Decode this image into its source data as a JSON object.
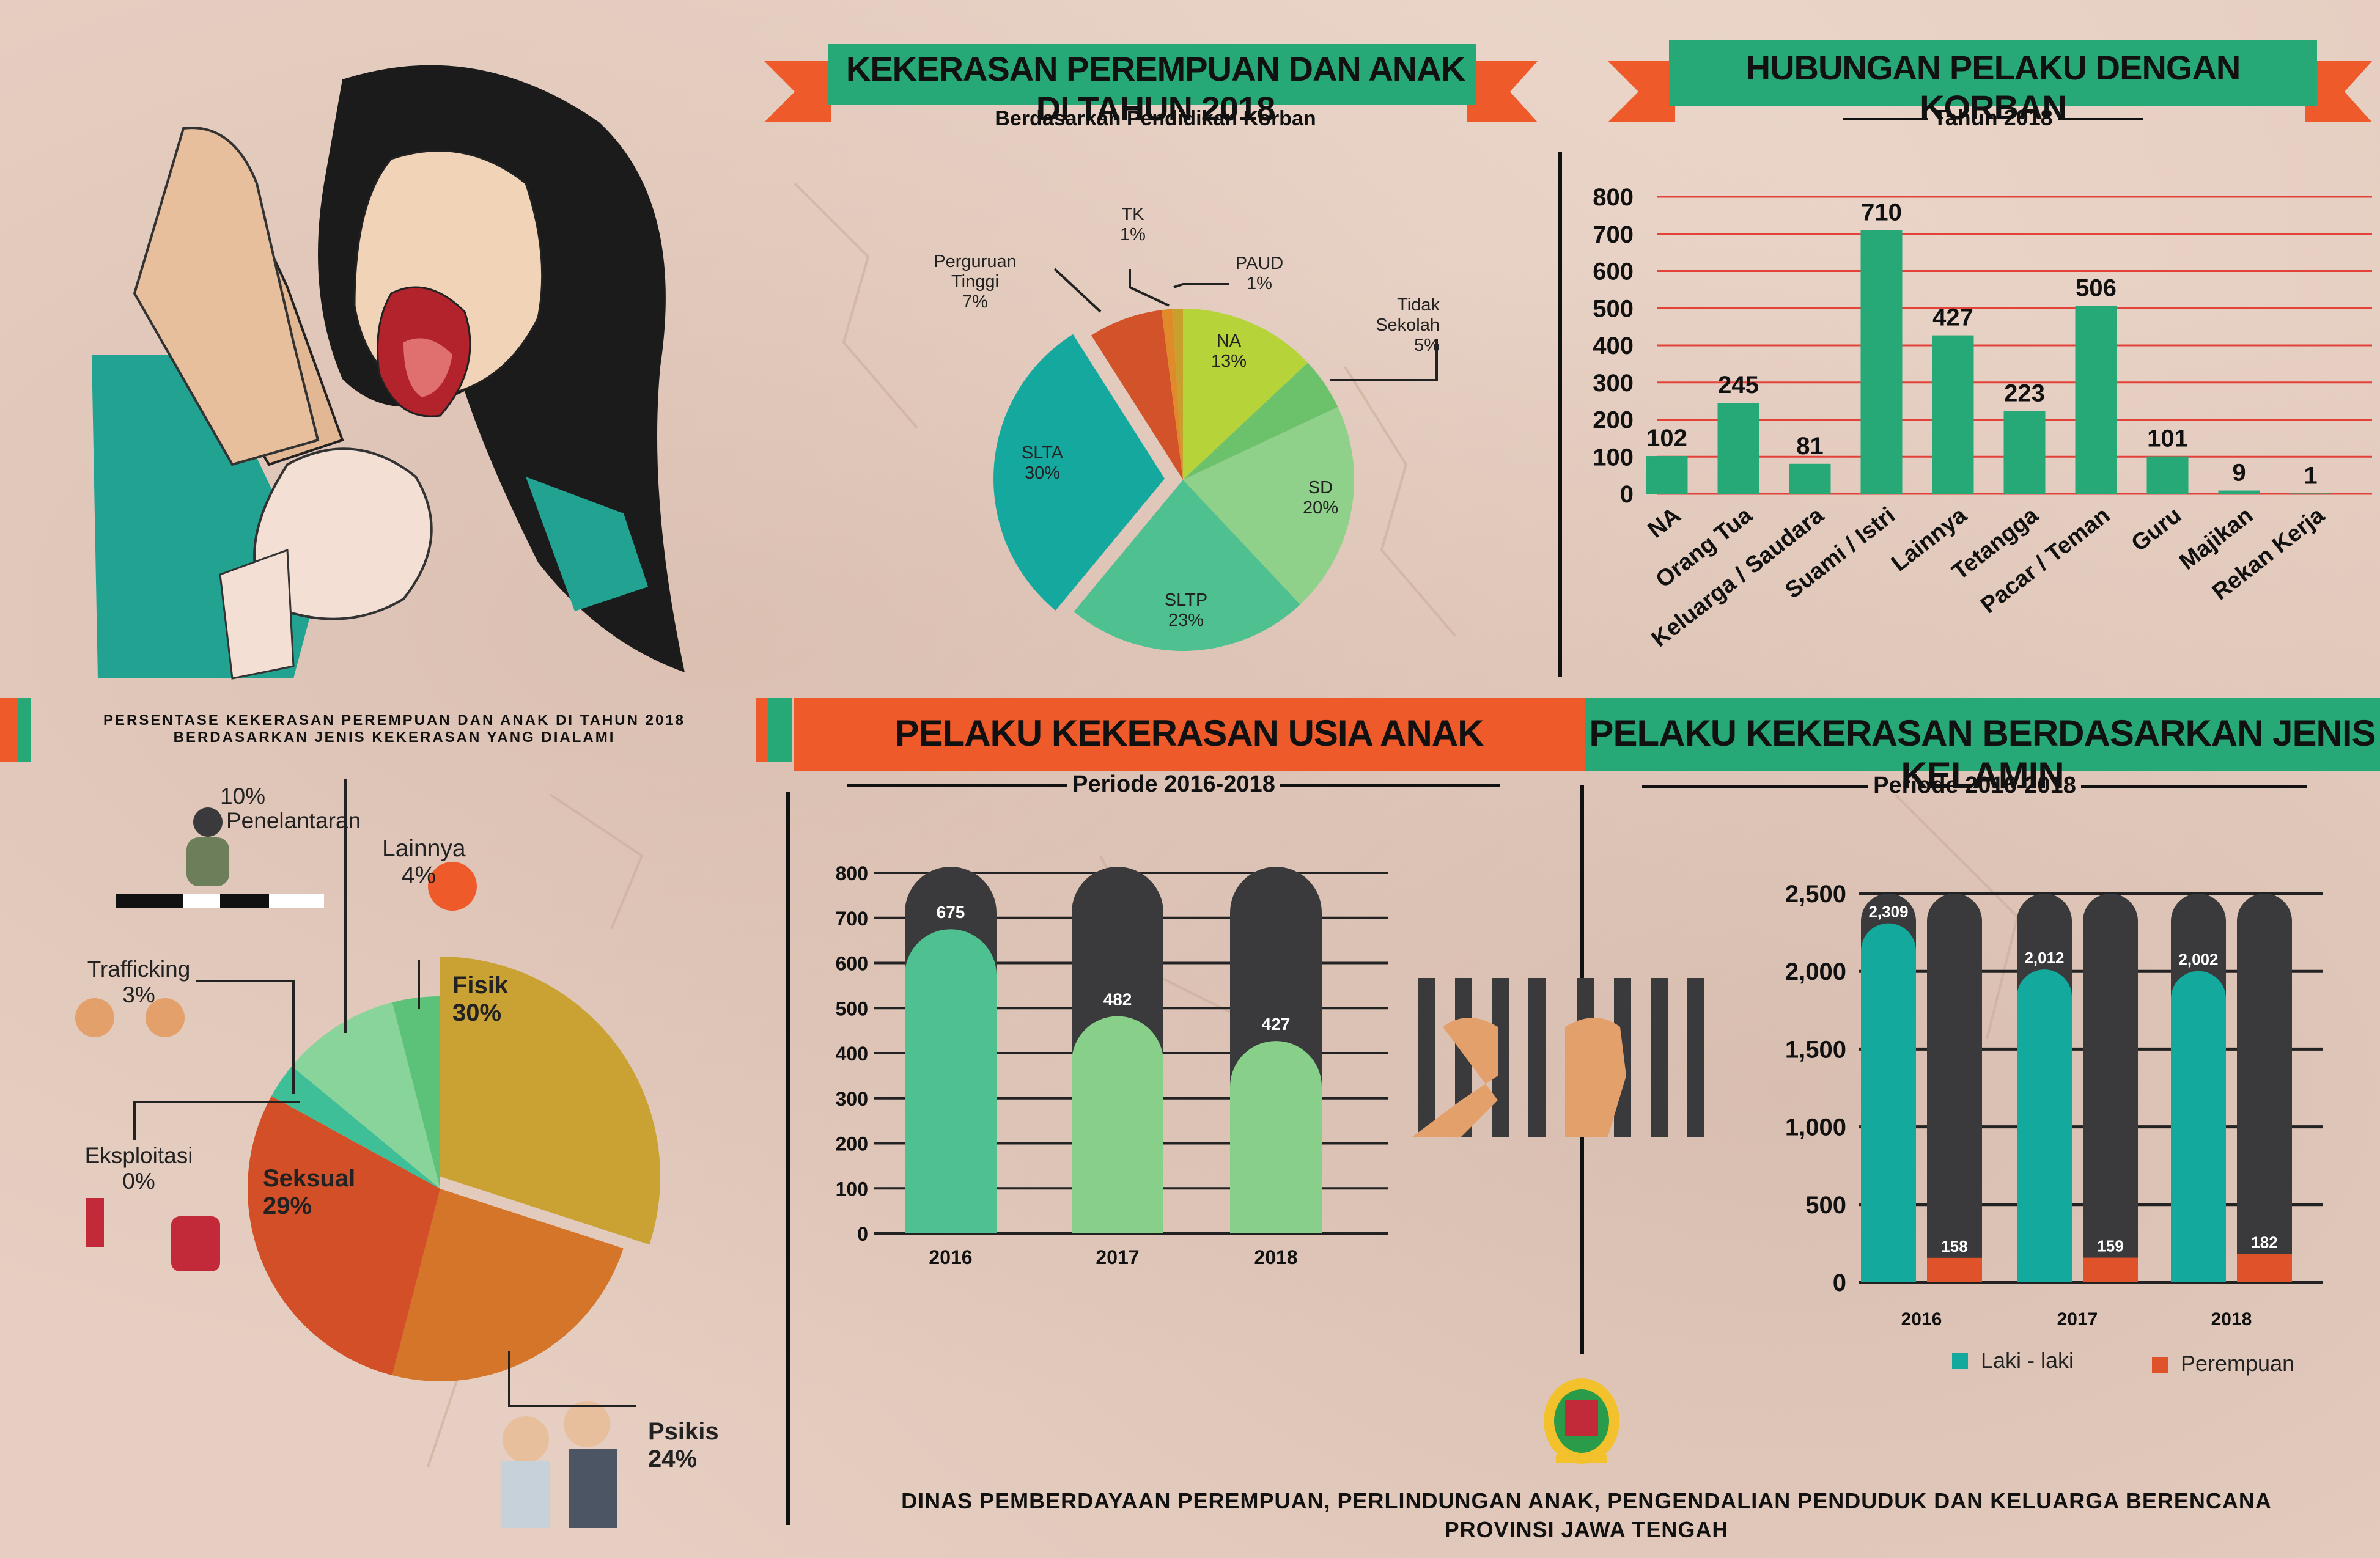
{
  "colors": {
    "green": "#27a877",
    "orange": "#ef5a2a",
    "dark": "#3a3a3c",
    "teal": "#13a99d",
    "red": "#e0522a",
    "gridline": "#e2423a"
  },
  "pie_edu": {
    "title": "KEKERASAN PEREMPUAN DAN ANAK DI TAHUN 2018",
    "subtitle": "Berdasarkan Pendidikan Korban",
    "labels": {
      "tk": "TK",
      "tk_pct": "1%",
      "paud": "PAUD",
      "paud_pct": "1%",
      "pt1": "Perguruan",
      "pt2": "Tinggi",
      "pt_pct": "7%",
      "ts": "Tidak Sekolah",
      "ts_pct": "5%",
      "na": "NA",
      "na_pct": "13%",
      "sd": "SD",
      "sd_pct": "20%",
      "sltp": "SLTP",
      "sltp_pct": "23%",
      "slta": "SLTA",
      "slta_pct": "30%"
    }
  },
  "bar_rel": {
    "title": "HUBUNGAN PELAKU DENGAN KORBAN",
    "subtitle": "Tahun 2018"
  },
  "pie_type": {
    "title_line1": "PERSENTASE KEKERASAN PEREMPUAN DAN ANAK DI TAHUN 2018",
    "title_line2": "BERDASARKAN JENIS KEKERASAN YANG DIALAMI",
    "labels": {
      "pen_pct": "10%",
      "pen": "Penelantaran",
      "lain": "Lainnya",
      "lain_pct": "4%",
      "traf": "Trafficking",
      "traf_pct": "3%",
      "eks": "Eksploitasi",
      "eks_pct": "0%",
      "fisik": "Fisik",
      "fisik_pct": "30%",
      "seks": "Seksual",
      "seks_pct": "29%",
      "psikis": "Psikis",
      "psikis_pct": "24%"
    }
  },
  "bar_age": {
    "title": "PELAKU KEKERASAN USIA ANAK",
    "subtitle": "Periode 2016-2018"
  },
  "bar_gender": {
    "title": "PELAKU KEKERASAN BERDASARKAN JENIS KELAMIN",
    "subtitle": "Periode 2016-2018",
    "legend_male": "Laki - laki",
    "legend_female": "Perempuan"
  },
  "footer": {
    "line1": "DINAS PEMBERDAYAAN PEREMPUAN, PERLINDUNGAN ANAK, PENGENDALIAN PENDUDUK DAN KELUARGA BERENCANA",
    "line2": "PROVINSI JAWA TENGAH"
  },
  "chart_data": [
    {
      "type": "pie",
      "title": "KEKERASAN PEREMPUAN DAN ANAK DI TAHUN 2018",
      "subtitle": "Berdasarkan Pendidikan Korban",
      "categories": [
        "NA",
        "Tidak Sekolah",
        "SD",
        "SLTP",
        "SLTA",
        "Perguruan Tinggi",
        "TK",
        "PAUD"
      ],
      "values": [
        13,
        5,
        20,
        23,
        30,
        7,
        1,
        1
      ],
      "colors": [
        "#b6d43a",
        "#6cc26a",
        "#8fd08a",
        "#4fc08f",
        "#15a89e",
        "#d2522a",
        "#e08a2c",
        "#c7a12c"
      ]
    },
    {
      "type": "bar",
      "title": "HUBUNGAN PELAKU DENGAN KORBAN",
      "subtitle": "Tahun 2018",
      "categories": [
        "NA",
        "Orang Tua",
        "Keluarga / Saudara",
        "Suami / Istri",
        "Lainnya",
        "Tetangga",
        "Pacar / Teman",
        "Guru",
        "Majikan",
        "Rekan Kerja"
      ],
      "values": [
        102,
        245,
        81,
        710,
        427,
        223,
        506,
        101,
        9,
        1
      ],
      "yticks": [
        0,
        100,
        200,
        300,
        400,
        500,
        600,
        700,
        800
      ],
      "ylim": [
        0,
        800
      ]
    },
    {
      "type": "pie",
      "title": "PERSENTASE KEKERASAN PEREMPUAN DAN ANAK DI TAHUN 2018 BERDASARKAN JENIS KEKERASAN YANG DIALAMI",
      "categories": [
        "Fisik",
        "Psikis",
        "Seksual",
        "Eksploitasi",
        "Trafficking",
        "Penelantaran",
        "Lainnya"
      ],
      "values": [
        30,
        24,
        29,
        0,
        3,
        10,
        4
      ],
      "colors": [
        "#c9a233",
        "#d4752a",
        "#d24f28",
        "#27a877",
        "#3fbf98",
        "#88d49a",
        "#5cc279"
      ]
    },
    {
      "type": "bar",
      "title": "PELAKU KEKERASAN USIA ANAK",
      "subtitle": "Periode 2016-2018",
      "categories": [
        "2016",
        "2017",
        "2018"
      ],
      "values": [
        675,
        482,
        427
      ],
      "yticks": [
        0,
        100,
        200,
        300,
        400,
        500,
        600,
        700,
        800
      ],
      "ylim": [
        0,
        800
      ]
    },
    {
      "type": "bar",
      "title": "PELAKU KEKERASAN BERDASARKAN JENIS KELAMIN",
      "subtitle": "Periode 2016-2018",
      "categories": [
        "2016",
        "2017",
        "2018"
      ],
      "series": [
        {
          "name": "Laki - laki",
          "values": [
            2309,
            2012,
            2002
          ]
        },
        {
          "name": "Perempuan",
          "values": [
            158,
            159,
            182
          ]
        }
      ],
      "yticks": [
        0,
        500,
        1000,
        1500,
        2000,
        2500
      ],
      "ytick_labels": [
        "0",
        "500",
        "1,000",
        "1,500",
        "2,000",
        "2,500"
      ],
      "value_labels": {
        "male": [
          "2,309",
          "2,012",
          "2,002"
        ],
        "female": [
          "158",
          "159",
          "182"
        ]
      },
      "ylim": [
        0,
        2500
      ]
    }
  ]
}
